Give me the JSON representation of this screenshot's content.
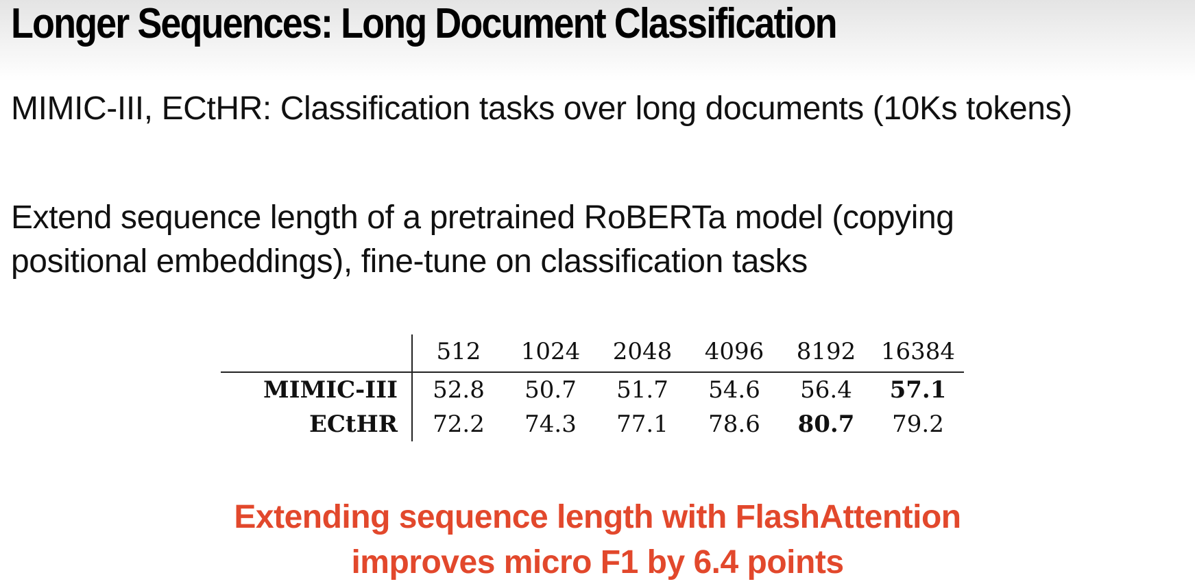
{
  "slide": {
    "title": "Longer Sequences: Long Document Classification",
    "line1": "MIMIC-III, ECtHR: Classification tasks over long documents (10Ks tokens)",
    "line2a": "Extend sequence length of a pretrained RoBERTa model (copying",
    "line2b": "positional embeddings), fine-tune on classification tasks",
    "callout_line1": "Extending sequence length with FlashAttention",
    "callout_line2": "improves micro F1 by 6.4 points",
    "callout_color": "#e2482c"
  },
  "table": {
    "columns": [
      "512",
      "1024",
      "2048",
      "4096",
      "8192",
      "16384"
    ],
    "rows": [
      {
        "label": "MIMIC-III",
        "values": [
          "52.8",
          "50.7",
          "51.7",
          "54.6",
          "56.4",
          "57.1"
        ],
        "best_index": 5
      },
      {
        "label": "ECtHR",
        "values": [
          "72.2",
          "74.3",
          "77.1",
          "78.6",
          "80.7",
          "79.2"
        ],
        "best_index": 4
      }
    ]
  }
}
